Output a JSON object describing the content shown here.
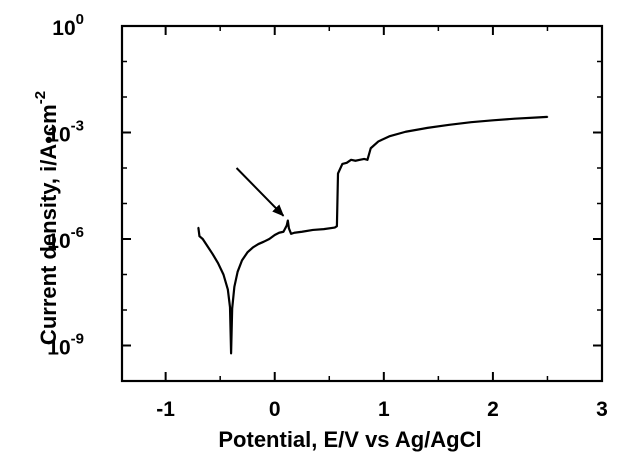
{
  "chart_data": {
    "type": "line",
    "xlabel": "Potential, E/V vs Ag/AgCl",
    "ylabel": "Current density, i/A•cm",
    "ylabel_superscript": "-2",
    "xlim": [
      -1.4,
      3.0
    ],
    "ylim_log10": [
      -10,
      0
    ],
    "yscale": "log",
    "grid": false,
    "x_ticks": [
      {
        "value": -1,
        "label": "-1"
      },
      {
        "value": 0,
        "label": "0"
      },
      {
        "value": 1,
        "label": "1"
      },
      {
        "value": 2,
        "label": "2"
      },
      {
        "value": 3,
        "label": "3"
      }
    ],
    "y_ticks": [
      {
        "value": 1e-09,
        "base": "10",
        "exp": "-9"
      },
      {
        "value": 1e-06,
        "base": "10",
        "exp": "-6"
      },
      {
        "value": 0.001,
        "base": "10",
        "exp": "-3"
      },
      {
        "value": 1,
        "base": "10",
        "exp": "0"
      }
    ],
    "series": [
      {
        "color": "#000000",
        "points": [
          [
            -0.7,
            2.1e-06
          ],
          [
            -0.69,
            1.2e-06
          ],
          [
            -0.66,
            1e-06
          ],
          [
            -0.62,
            6.5e-07
          ],
          [
            -0.57,
            3.8e-07
          ],
          [
            -0.52,
            2.1e-07
          ],
          [
            -0.47,
            1e-07
          ],
          [
            -0.43,
            3.8e-08
          ],
          [
            -0.41,
            1.2e-08
          ],
          [
            -0.4,
            6e-10
          ],
          [
            -0.39,
            1.1e-08
          ],
          [
            -0.37,
            4.5e-08
          ],
          [
            -0.34,
            1.2e-07
          ],
          [
            -0.3,
            2.5e-07
          ],
          [
            -0.25,
            4.2e-07
          ],
          [
            -0.2,
            5.8e-07
          ],
          [
            -0.15,
            7.2e-07
          ],
          [
            -0.1,
            8.4e-07
          ],
          [
            -0.05,
            1e-06
          ],
          [
            0.0,
            1.3e-06
          ],
          [
            0.04,
            1.5e-06
          ],
          [
            0.08,
            1.6e-06
          ],
          [
            0.11,
            2.4e-06
          ],
          [
            0.12,
            3.3e-06
          ],
          [
            0.13,
            2e-06
          ],
          [
            0.15,
            1.4e-06
          ],
          [
            0.18,
            1.5e-06
          ],
          [
            0.25,
            1.6e-06
          ],
          [
            0.35,
            1.8e-06
          ],
          [
            0.45,
            1.9e-06
          ],
          [
            0.55,
            2.1e-06
          ],
          [
            0.57,
            2.3e-06
          ],
          [
            0.58,
            7e-05
          ],
          [
            0.62,
            0.00013
          ],
          [
            0.66,
            0.00014
          ],
          [
            0.7,
            0.00017
          ],
          [
            0.74,
            0.00016
          ],
          [
            0.78,
            0.00017
          ],
          [
            0.82,
            0.00018
          ],
          [
            0.85,
            0.00017
          ],
          [
            0.88,
            0.00036
          ],
          [
            0.95,
            0.00056
          ],
          [
            1.05,
            0.00078
          ],
          [
            1.2,
            0.00105
          ],
          [
            1.4,
            0.00135
          ],
          [
            1.6,
            0.00165
          ],
          [
            1.8,
            0.00195
          ],
          [
            2.0,
            0.0022
          ],
          [
            2.2,
            0.00245
          ],
          [
            2.4,
            0.00265
          ],
          [
            2.5,
            0.00275
          ]
        ]
      }
    ],
    "annotations": [
      {
        "type": "arrow",
        "from": [
          -0.35,
          0.0001
        ],
        "to": [
          0.08,
          4.5e-06
        ]
      }
    ]
  }
}
